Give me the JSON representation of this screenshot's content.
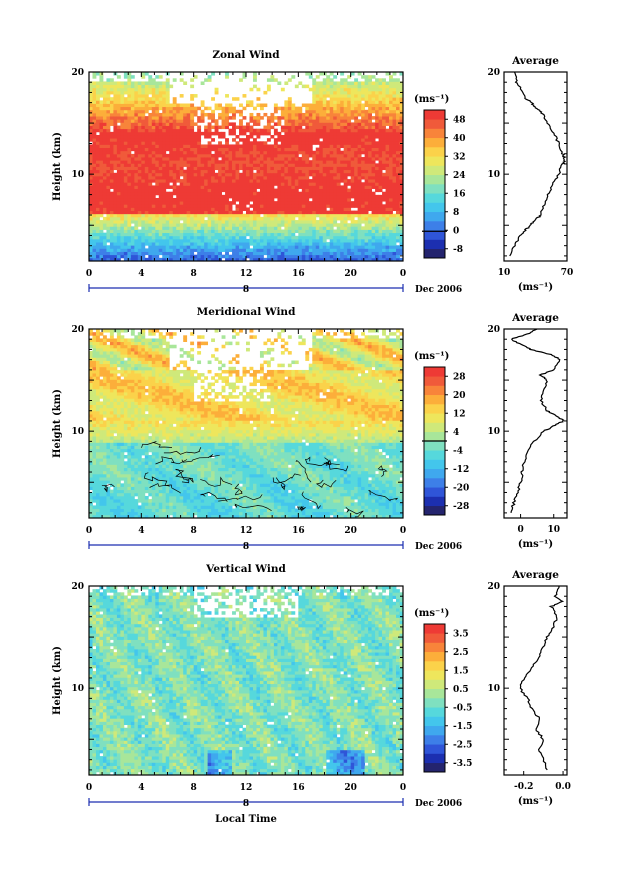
{
  "chart_data": [
    {
      "type": "heatmap",
      "name": "zonal",
      "title": "Zonal Wind",
      "xlabel": "",
      "ylabel": "Height (km)",
      "x_ticks": [
        "0",
        "4",
        "8",
        "12",
        "16",
        "20",
        "0"
      ],
      "y_ticks": [
        "20",
        "10"
      ],
      "date_label": "Dec 2006",
      "date_tick": "8",
      "xlim": [
        0,
        24
      ],
      "ylim": [
        1.5,
        20
      ],
      "colorbar": {
        "unit": "(ms⁻¹)",
        "labels": [
          "48",
          "40",
          "32",
          "24",
          "16",
          "8",
          "0",
          "-8"
        ],
        "range": [
          -12,
          52
        ]
      },
      "average": {
        "title": "Average",
        "x_ticks": [
          "10",
          "70"
        ],
        "xlim": [
          10,
          70
        ],
        "y_ticks": [
          "20",
          "10"
        ],
        "xunit": "(ms⁻¹)",
        "profile": [
          [
            15,
            2
          ],
          [
            20,
            3
          ],
          [
            25,
            4
          ],
          [
            30,
            4.5
          ],
          [
            35,
            5
          ],
          [
            40,
            5.5
          ],
          [
            45,
            6
          ],
          [
            48,
            7
          ],
          [
            52,
            8
          ],
          [
            56,
            9
          ],
          [
            62,
            10
          ],
          [
            66,
            11
          ],
          [
            68,
            11.5
          ],
          [
            66,
            12
          ],
          [
            62,
            13
          ],
          [
            58,
            14
          ],
          [
            52,
            15
          ],
          [
            46,
            16
          ],
          [
            40,
            16.5
          ],
          [
            36,
            17
          ],
          [
            30,
            17.5
          ],
          [
            26,
            18.5
          ],
          [
            22,
            19
          ],
          [
            20,
            20
          ]
        ]
      }
    },
    {
      "type": "heatmap",
      "name": "meridional",
      "title": "Meridional Wind",
      "xlabel": "",
      "ylabel": "Height (km)",
      "x_ticks": [
        "0",
        "4",
        "8",
        "12",
        "16",
        "20",
        "0"
      ],
      "y_ticks": [
        "20",
        "10"
      ],
      "date_label": "Dec 2006",
      "date_tick": "8",
      "xlim": [
        0,
        24
      ],
      "ylim": [
        1.5,
        20
      ],
      "colorbar": {
        "unit": "(ms⁻¹)",
        "labels": [
          "28",
          "20",
          "12",
          "4",
          "-4",
          "-12",
          "-20",
          "-28"
        ],
        "range": [
          -32,
          32
        ]
      },
      "average": {
        "title": "Average",
        "x_ticks": [
          "0",
          "10"
        ],
        "xlim": [
          -5,
          14
        ],
        "y_ticks": [
          "20",
          "10"
        ],
        "xunit": "(ms⁻¹)",
        "profile": [
          [
            -3,
            2
          ],
          [
            -2,
            3
          ],
          [
            -1,
            4
          ],
          [
            0,
            5
          ],
          [
            0.5,
            6
          ],
          [
            1,
            7
          ],
          [
            2,
            8
          ],
          [
            4,
            9
          ],
          [
            7,
            10
          ],
          [
            10,
            10.5
          ],
          [
            13,
            11
          ],
          [
            11,
            11.5
          ],
          [
            8,
            12
          ],
          [
            6,
            13
          ],
          [
            7,
            14
          ],
          [
            8,
            15
          ],
          [
            6,
            15.5
          ],
          [
            10,
            16
          ],
          [
            12,
            17
          ],
          [
            9,
            17.5
          ],
          [
            3,
            18
          ],
          [
            0,
            18.5
          ],
          [
            -3,
            19
          ],
          [
            2,
            19.5
          ],
          [
            5,
            20
          ]
        ]
      }
    },
    {
      "type": "heatmap",
      "name": "vertical",
      "title": "Vertical Wind",
      "xlabel": "Local Time",
      "ylabel": "Height (km)",
      "x_ticks": [
        "0",
        "4",
        "8",
        "12",
        "16",
        "20",
        "0"
      ],
      "y_ticks": [
        "20",
        "10"
      ],
      "date_label": "Dec 2006",
      "date_tick": "8",
      "xlim": [
        0,
        24
      ],
      "ylim": [
        1.5,
        20
      ],
      "colorbar": {
        "unit": "(ms⁻¹)",
        "labels": [
          "3.5",
          "2.5",
          "1.5",
          "0.5",
          "-0.5",
          "-1.5",
          "-2.5",
          "-3.5"
        ],
        "range": [
          -4,
          4
        ]
      },
      "average": {
        "title": "Average",
        "x_ticks": [
          "-0.2",
          "0.0"
        ],
        "xlim": [
          -0.3,
          0.02
        ],
        "y_ticks": [
          "20",
          "10"
        ],
        "xunit": "(ms⁻¹)",
        "profile": [
          [
            -0.08,
            2
          ],
          [
            -0.1,
            3
          ],
          [
            -0.12,
            4
          ],
          [
            -0.1,
            5
          ],
          [
            -0.14,
            6
          ],
          [
            -0.12,
            7
          ],
          [
            -0.16,
            8
          ],
          [
            -0.18,
            9
          ],
          [
            -0.22,
            10
          ],
          [
            -0.2,
            11
          ],
          [
            -0.16,
            12
          ],
          [
            -0.12,
            13
          ],
          [
            -0.1,
            14
          ],
          [
            -0.08,
            15
          ],
          [
            -0.05,
            16
          ],
          [
            -0.03,
            17
          ],
          [
            -0.06,
            18
          ],
          [
            0.0,
            18.5
          ],
          [
            -0.04,
            19
          ],
          [
            -0.02,
            20
          ]
        ]
      }
    }
  ]
}
